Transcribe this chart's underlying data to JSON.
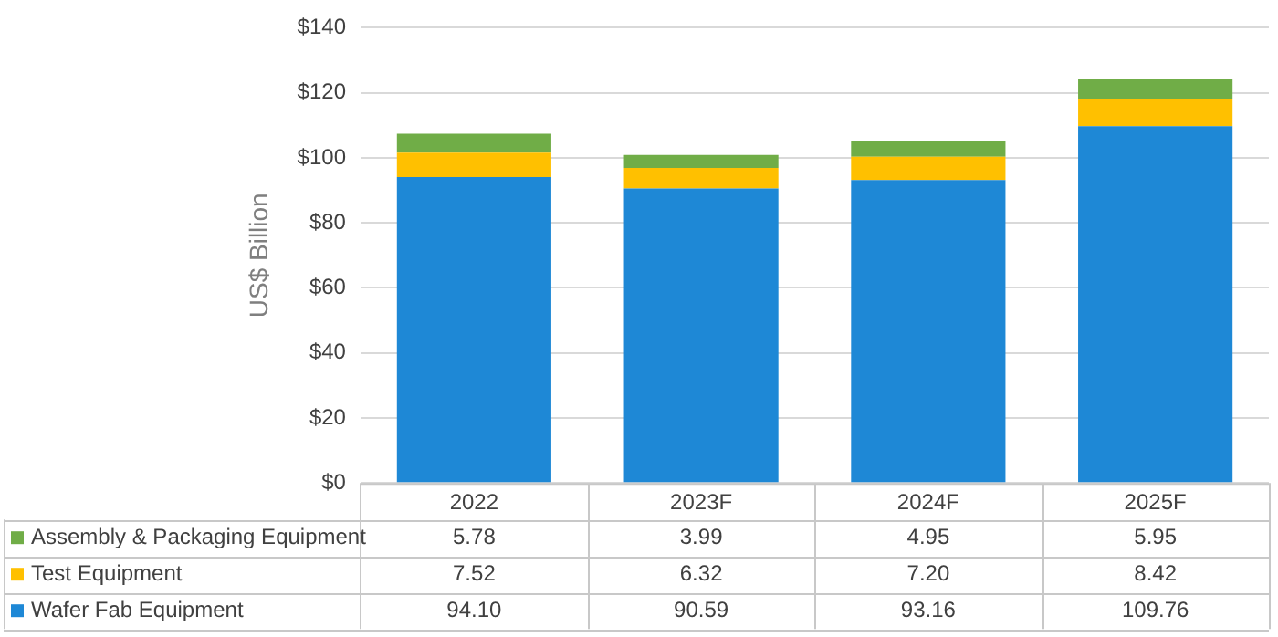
{
  "chart_data": {
    "type": "bar",
    "stacked": true,
    "ylabel": "US$ Billion",
    "categories": [
      "2022",
      "2023F",
      "2024F",
      "2025F"
    ],
    "series": [
      {
        "name": "Wafer Fab Equipment",
        "color": "#1e88d6",
        "values": [
          94.1,
          90.59,
          93.16,
          109.76
        ],
        "value_labels": [
          "94.10",
          "90.59",
          "93.16",
          "109.76"
        ]
      },
      {
        "name": "Test Equipment",
        "color": "#ffc000",
        "values": [
          7.52,
          6.32,
          7.2,
          8.42
        ],
        "value_labels": [
          "7.52",
          "6.32",
          "7.20",
          "8.42"
        ]
      },
      {
        "name": "Assembly & Packaging Equipment",
        "color": "#70ad47",
        "values": [
          5.78,
          3.99,
          4.95,
          5.95
        ],
        "value_labels": [
          "5.78",
          "3.99",
          "4.95",
          "5.95"
        ]
      }
    ],
    "ylim": [
      0,
      140
    ],
    "yticks": [
      {
        "value": 0,
        "label": "$0"
      },
      {
        "value": 20,
        "label": "$20"
      },
      {
        "value": 40,
        "label": "$40"
      },
      {
        "value": 60,
        "label": "$60"
      },
      {
        "value": 80,
        "label": "$80"
      },
      {
        "value": 100,
        "label": "$100"
      },
      {
        "value": 120,
        "label": "$120"
      },
      {
        "value": 140,
        "label": "$140"
      }
    ],
    "grid": "y",
    "legend": "bottom"
  }
}
